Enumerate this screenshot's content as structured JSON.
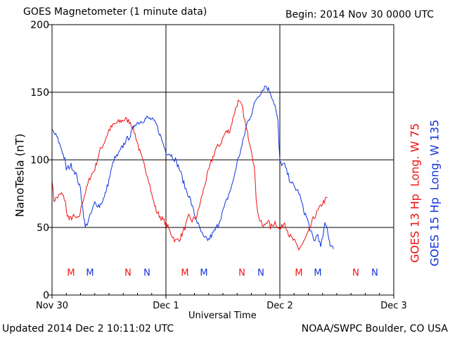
{
  "header": {
    "title": "GOES Magnetometer (1 minute data)",
    "begin": "Begin:  2014 Nov 30 0000 UTC"
  },
  "footer": {
    "updated": "Updated 2014 Dec  2 10:11:02 UTC",
    "credit": "NOAA/SWPC Boulder, CO USA"
  },
  "chart_data": {
    "type": "line",
    "xlabel": "Universal Time",
    "ylabel": "NanoTesla (nT)",
    "x_unit": "hours since 2014 Nov 30 0000 UTC",
    "xlim": [
      0,
      72
    ],
    "ylim": [
      0,
      200
    ],
    "x_ticks": [
      {
        "x": 0,
        "label": "Nov 30"
      },
      {
        "x": 24,
        "label": "Dec 1"
      },
      {
        "x": 48,
        "label": "Dec 2"
      },
      {
        "x": 72,
        "label": "Dec 3"
      }
    ],
    "y_ticks": [
      0,
      50,
      100,
      150,
      200
    ],
    "grid": true,
    "series": [
      {
        "name": "GOES 13 Hp",
        "label_suffix": "Long. W 75",
        "color": "#ee1111",
        "points": [
          [
            0,
            86
          ],
          [
            0.4,
            70
          ],
          [
            1,
            72
          ],
          [
            2,
            75
          ],
          [
            2.8,
            70
          ],
          [
            3,
            62
          ],
          [
            3.6,
            56
          ],
          [
            4.5,
            58
          ],
          [
            5.6,
            56
          ],
          [
            6.5,
            70
          ],
          [
            8,
            87
          ],
          [
            9,
            93
          ],
          [
            10,
            106
          ],
          [
            11,
            113
          ],
          [
            12,
            122
          ],
          [
            13,
            126
          ],
          [
            14,
            128
          ],
          [
            15.5,
            130
          ],
          [
            16.5,
            128
          ],
          [
            17.5,
            119
          ],
          [
            18.5,
            106
          ],
          [
            19.3,
            97
          ],
          [
            20.5,
            84
          ],
          [
            21,
            74
          ],
          [
            22,
            62
          ],
          [
            23,
            57
          ],
          [
            24,
            53
          ],
          [
            25,
            46
          ],
          [
            26,
            40
          ],
          [
            27,
            42
          ],
          [
            28,
            50
          ],
          [
            28.8,
            58
          ],
          [
            29.5,
            55
          ],
          [
            30.5,
            58
          ],
          [
            31.5,
            72
          ],
          [
            32.5,
            86
          ],
          [
            33.5,
            98
          ],
          [
            34.5,
            108
          ],
          [
            35.5,
            112
          ],
          [
            36.5,
            120
          ],
          [
            37.5,
            122
          ],
          [
            38.5,
            136
          ],
          [
            39.2,
            143
          ],
          [
            40,
            140
          ],
          [
            41,
            122
          ],
          [
            42,
            108
          ],
          [
            42.6,
            95
          ],
          [
            43,
            72
          ],
          [
            43.5,
            58
          ],
          [
            44.5,
            50
          ],
          [
            45.5,
            56
          ],
          [
            46,
            50
          ],
          [
            47,
            54
          ],
          [
            48,
            48
          ],
          [
            49,
            54
          ],
          [
            50,
            44
          ],
          [
            51,
            40
          ],
          [
            52,
            34
          ],
          [
            53,
            39
          ],
          [
            54,
            46
          ],
          [
            55,
            56
          ],
          [
            56,
            62
          ],
          [
            57,
            68
          ],
          [
            58,
            72
          ]
        ]
      },
      {
        "name": "GOES 15 Hp",
        "label_suffix": "Long. W 135",
        "color": "#1133dd",
        "points": [
          [
            0,
            122
          ],
          [
            1,
            117
          ],
          [
            2,
            108
          ],
          [
            2.7,
            100
          ],
          [
            3,
            93
          ],
          [
            4,
            96
          ],
          [
            5,
            90
          ],
          [
            6,
            78
          ],
          [
            6.5,
            63
          ],
          [
            7,
            50
          ],
          [
            8,
            58
          ],
          [
            9,
            68
          ],
          [
            10,
            66
          ],
          [
            11,
            72
          ],
          [
            12,
            85
          ],
          [
            13,
            100
          ],
          [
            14,
            104
          ],
          [
            15.5,
            114
          ],
          [
            16.5,
            118
          ],
          [
            17.5,
            127
          ],
          [
            18.5,
            128
          ],
          [
            20,
            131
          ],
          [
            21,
            130
          ],
          [
            22,
            126
          ],
          [
            23,
            116
          ],
          [
            24,
            106
          ],
          [
            25,
            104
          ],
          [
            26,
            100
          ],
          [
            27,
            92
          ],
          [
            28,
            80
          ],
          [
            29,
            72
          ],
          [
            30,
            60
          ],
          [
            31,
            50
          ],
          [
            32,
            42
          ],
          [
            33,
            41
          ],
          [
            34,
            46
          ],
          [
            35,
            52
          ],
          [
            36,
            62
          ],
          [
            37,
            72
          ],
          [
            38,
            82
          ],
          [
            39,
            98
          ],
          [
            40,
            110
          ],
          [
            41,
            126
          ],
          [
            42,
            134
          ],
          [
            43,
            145
          ],
          [
            44,
            150
          ],
          [
            45,
            155
          ],
          [
            46,
            150
          ],
          [
            47,
            140
          ],
          [
            47.6,
            128
          ],
          [
            48,
            98
          ],
          [
            49,
            96
          ],
          [
            50,
            86
          ],
          [
            51,
            80
          ],
          [
            52,
            76
          ],
          [
            53,
            63
          ],
          [
            53.8,
            56
          ],
          [
            54.5,
            47
          ],
          [
            55.2,
            40
          ],
          [
            56,
            45
          ],
          [
            56.6,
            35
          ],
          [
            57.5,
            52
          ],
          [
            58,
            50
          ],
          [
            58.3,
            42
          ],
          [
            58.8,
            36
          ],
          [
            59.3,
            34
          ]
        ]
      }
    ],
    "annotations": [
      {
        "x": 4,
        "label": "M",
        "series": 0
      },
      {
        "x": 8,
        "label": "M",
        "series": 1
      },
      {
        "x": 16,
        "label": "N",
        "series": 0
      },
      {
        "x": 20,
        "label": "N",
        "series": 1
      },
      {
        "x": 28,
        "label": "M",
        "series": 0
      },
      {
        "x": 32,
        "label": "M",
        "series": 1
      },
      {
        "x": 40,
        "label": "N",
        "series": 0
      },
      {
        "x": 44,
        "label": "N",
        "series": 1
      },
      {
        "x": 52,
        "label": "M",
        "series": 0
      },
      {
        "x": 56,
        "label": "M",
        "series": 1
      },
      {
        "x": 64,
        "label": "N",
        "series": 0
      },
      {
        "x": 68,
        "label": "N",
        "series": 1
      }
    ],
    "annotation_y": 17
  }
}
